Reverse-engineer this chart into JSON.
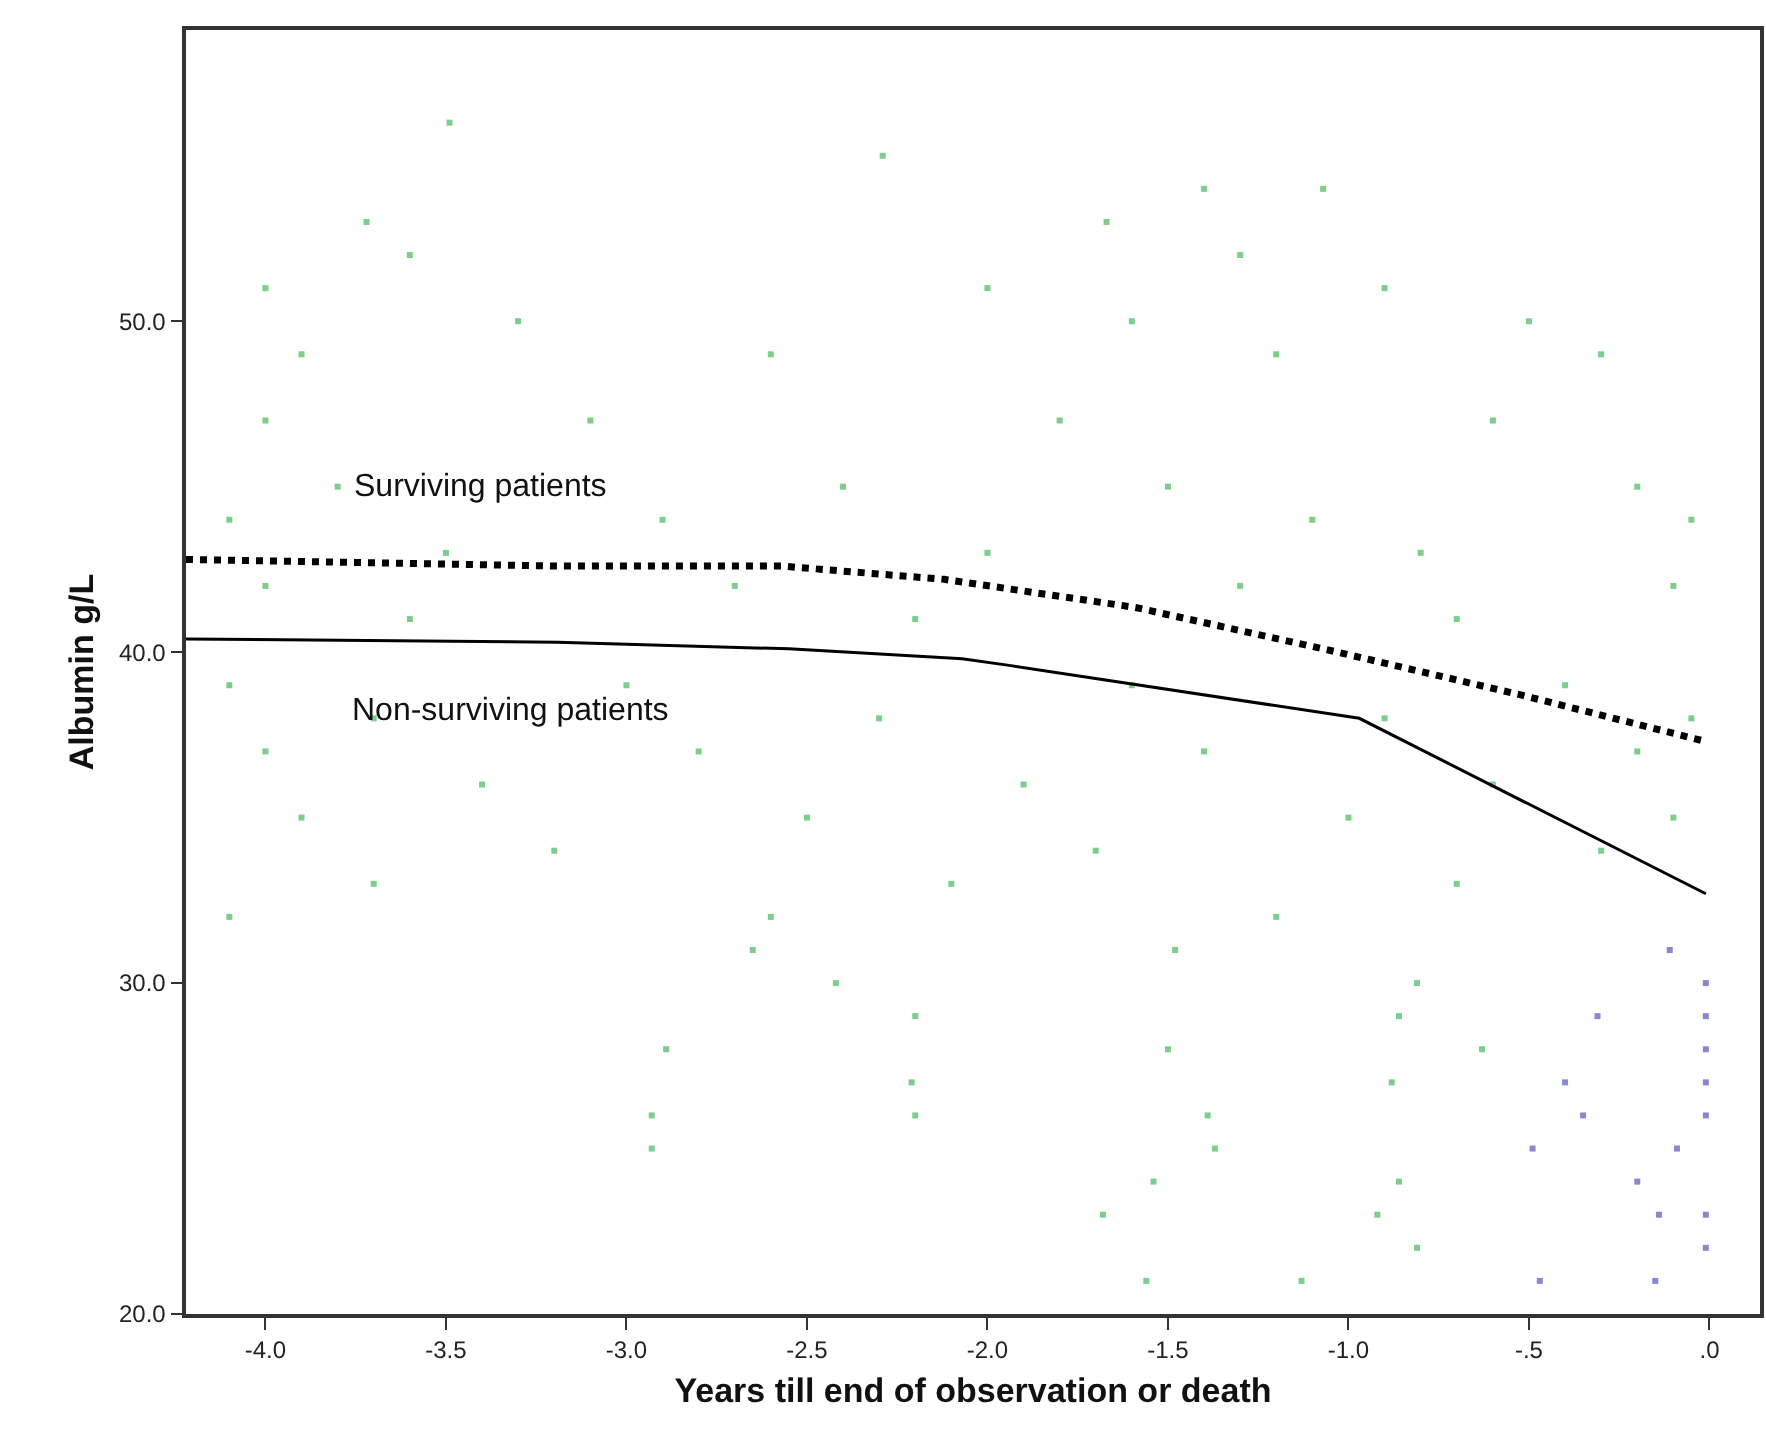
{
  "chart_data": {
    "type": "line",
    "xlabel": "Years till end of observation or death",
    "ylabel": "Albumin g/L",
    "xlim": [
      -4.22,
      0.14
    ],
    "ylim": [
      20,
      58.8
    ],
    "xticks": [
      {
        "value": -4,
        "label": "-4.0"
      },
      {
        "value": -3.5,
        "label": "-3.5"
      },
      {
        "value": -3,
        "label": "-3.0"
      },
      {
        "value": -2.5,
        "label": "-2.5"
      },
      {
        "value": -2,
        "label": "-2.0"
      },
      {
        "value": -1.5,
        "label": "-1.5"
      },
      {
        "value": -1,
        "label": "-1.0"
      },
      {
        "value": -0.5,
        "label": "-.5"
      },
      {
        "value": 0,
        "label": ".0"
      }
    ],
    "yticks": [
      {
        "value": 20,
        "label": "20.0"
      },
      {
        "value": 30,
        "label": "30.0"
      },
      {
        "value": 40,
        "label": "40.0"
      },
      {
        "value": 50,
        "label": "50.0"
      }
    ],
    "grid": false,
    "series": [
      {
        "type": "scatter",
        "marker": "square",
        "color": "#7ccf8a",
        "x": [
          -3.49,
          -2.29,
          -1.4,
          -1.07,
          -3.72,
          -1.67,
          -3.6,
          -1.3,
          -4.0,
          -2.0,
          -0.9,
          -3.3,
          -1.6,
          -0.5,
          -3.9,
          -2.6,
          -1.2,
          -0.3,
          -4.0,
          -3.1,
          -1.8,
          -0.6,
          -3.8,
          -2.4,
          -1.5,
          -0.2,
          -4.1,
          -2.9,
          -1.1,
          -0.05,
          -3.5,
          -2.0,
          -0.8,
          -4.0,
          -2.7,
          -1.3,
          -0.1,
          -3.6,
          -2.2,
          -0.7,
          -4.1,
          -3.0,
          -1.6,
          -0.4,
          -3.7,
          -2.3,
          -0.9,
          -0.05,
          -4.0,
          -2.8,
          -1.4,
          -0.2,
          -3.4,
          -1.9,
          -0.6,
          -3.9,
          -2.5,
          -1.0,
          -0.1,
          -3.2,
          -1.7,
          -0.3,
          -3.7,
          -2.1,
          -0.7,
          -4.1,
          -2.6,
          -1.2,
          -2.65,
          -1.48,
          -2.42,
          -0.81,
          -2.2,
          -0.86,
          -2.89,
          -1.5,
          -0.63,
          -2.21,
          -0.88,
          -2.93,
          -2.2,
          -1.39,
          -2.93,
          -1.37,
          -1.54,
          -0.86,
          -1.68,
          -0.92,
          -0.81,
          -1.56,
          -1.13
        ],
        "values": [
          56,
          55,
          54,
          54,
          53,
          53,
          52,
          52,
          51,
          51,
          51,
          50,
          50,
          50,
          49,
          49,
          49,
          49,
          47,
          47,
          47,
          47,
          45,
          45,
          45,
          45,
          44,
          44,
          44,
          44,
          43,
          43,
          43,
          42,
          42,
          42,
          42,
          41,
          41,
          41,
          39,
          39,
          39,
          39,
          38,
          38,
          38,
          38,
          37,
          37,
          37,
          37,
          36,
          36,
          36,
          35,
          35,
          35,
          35,
          34,
          34,
          34,
          33,
          33,
          33,
          32,
          32,
          32,
          31,
          31,
          30,
          30,
          29,
          29,
          28,
          28,
          28,
          27,
          27,
          26,
          26,
          26,
          25,
          25,
          24,
          24,
          23,
          23,
          22,
          21,
          21
        ]
      },
      {
        "type": "scatter",
        "marker": "square",
        "color": "#8888d0",
        "x": [
          -0.11,
          -0.01,
          -0.31,
          -0.01,
          -0.01,
          -0.4,
          -0.01,
          -0.35,
          -0.01,
          -0.49,
          -0.09,
          -0.2,
          -0.14,
          -0.01,
          -0.01,
          -0.47,
          -0.15
        ],
        "values": [
          31,
          30,
          29,
          29,
          28,
          27,
          27,
          26,
          26,
          25,
          25,
          24,
          23,
          23,
          22,
          21,
          21
        ]
      },
      {
        "line_style": "dotted",
        "color": "#000000",
        "x": [
          -4.22,
          -3.19,
          -2.57,
          -2.12,
          -1.59,
          -1.05,
          -0.52,
          -0.01
        ],
        "values": [
          42.8,
          42.6,
          42.6,
          42.2,
          41.35,
          40.05,
          38.7,
          37.3
        ]
      },
      {
        "line_style": "solid",
        "color": "#000000",
        "x": [
          -4.22,
          -3.19,
          -2.55,
          -2.07,
          -1.94,
          -0.97,
          -0.01
        ],
        "values": [
          40.4,
          40.3,
          40.1,
          39.8,
          39.6,
          38.0,
          32.7
        ]
      }
    ],
    "annotations": [
      "Surviving patients",
      "Non-surviving patients"
    ]
  }
}
